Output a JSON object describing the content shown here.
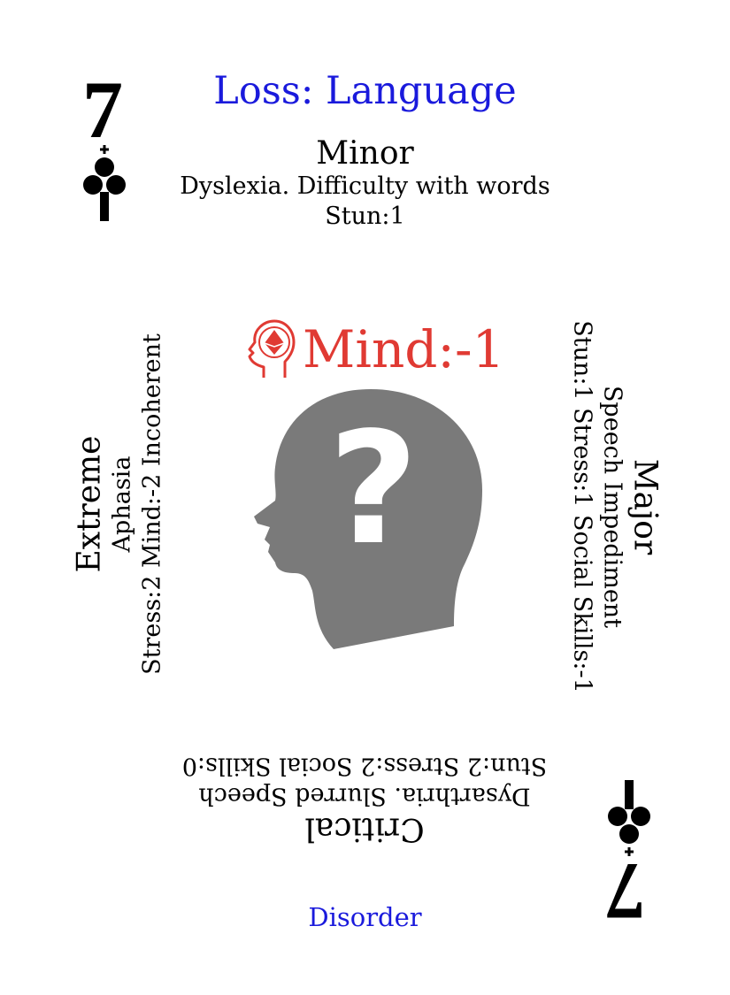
{
  "card": {
    "rank": "7",
    "suit_icon": "club-icon",
    "title": "Loss: Language",
    "footer": "Disorder",
    "minor": {
      "name": "Minor",
      "desc": "Dyslexia. Difficulty with words",
      "effects": "Stun:1"
    },
    "major": {
      "name": "Major",
      "desc": "Speech Impediment",
      "effects": "Stun:1 Stress:1 Social Skills:-1"
    },
    "critical": {
      "name": "Critical",
      "desc": "Dysarthria. Slurred Speech",
      "effects": "Stun:2 Stress:2 Social Skills:0"
    },
    "extreme": {
      "name": "Extreme",
      "desc": "Aphasia",
      "effects": "Stress:2 Mind:-2 Incoherent"
    },
    "stat": {
      "icon": "mind-head-icon",
      "label": "Mind:-1"
    },
    "illustration": "head-question-mark-icon",
    "colors": {
      "title": "#1a1adc",
      "stat": "#e03a33",
      "head": "#7a7a7a"
    }
  }
}
